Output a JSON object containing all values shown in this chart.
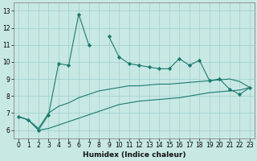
{
  "xlabel": "Humidex (Indice chaleur)",
  "x": [
    0,
    1,
    2,
    3,
    4,
    5,
    6,
    7,
    8,
    9,
    10,
    11,
    12,
    13,
    14,
    15,
    16,
    17,
    18,
    19,
    20,
    21,
    22,
    23
  ],
  "line1": [
    6.8,
    6.6,
    6.0,
    6.9,
    9.9,
    9.8,
    12.8,
    11.0,
    null,
    11.5,
    10.3,
    9.9,
    9.8,
    9.7,
    9.6,
    9.6,
    10.2,
    9.8,
    10.1,
    8.9,
    9.0,
    8.4,
    8.1,
    8.5
  ],
  "line2": [
    6.8,
    6.6,
    6.1,
    7.0,
    7.4,
    7.6,
    7.9,
    8.1,
    8.3,
    8.4,
    8.5,
    8.6,
    8.6,
    8.65,
    8.7,
    8.7,
    8.75,
    8.8,
    8.85,
    8.9,
    8.95,
    9.0,
    8.85,
    8.5
  ],
  "line3": [
    6.8,
    6.6,
    6.0,
    6.1,
    6.3,
    6.5,
    6.7,
    6.9,
    7.1,
    7.3,
    7.5,
    7.6,
    7.7,
    7.75,
    7.8,
    7.85,
    7.9,
    8.0,
    8.1,
    8.2,
    8.25,
    8.3,
    8.35,
    8.5
  ],
  "line_color": "#1a7a6e",
  "bg_color": "#c8e8e4",
  "grid_color": "#9ecfcb",
  "ylim": [
    5.5,
    13.5
  ],
  "xlim": [
    -0.5,
    23.5
  ],
  "yticks": [
    6,
    7,
    8,
    9,
    10,
    11,
    12,
    13
  ],
  "xticks": [
    0,
    1,
    2,
    3,
    4,
    5,
    6,
    7,
    8,
    9,
    10,
    11,
    12,
    13,
    14,
    15,
    16,
    17,
    18,
    19,
    20,
    21,
    22,
    23
  ]
}
